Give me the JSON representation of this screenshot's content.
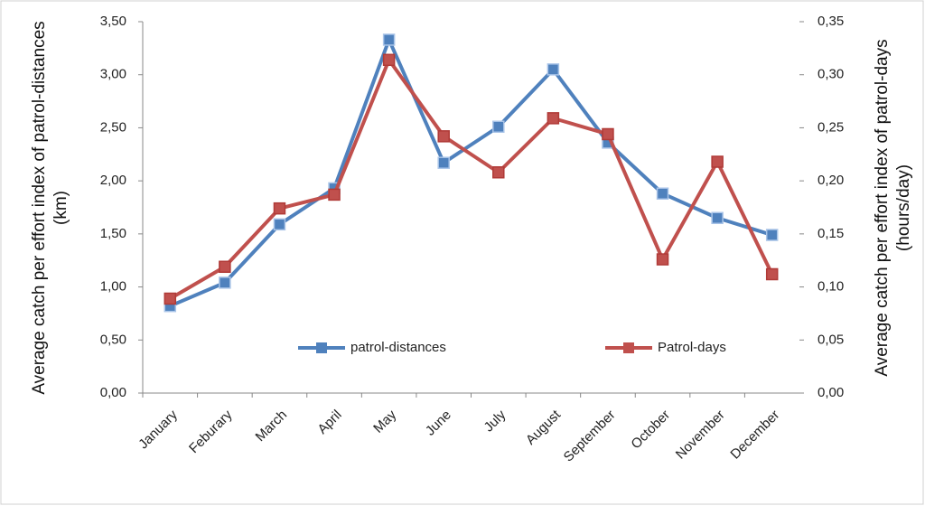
{
  "chart_data": {
    "type": "line",
    "categories": [
      "January",
      "Feburary",
      "March",
      "April",
      "May",
      "June",
      "July",
      "August",
      "September",
      "October",
      "November",
      "December"
    ],
    "series": [
      {
        "name": "patrol-distances",
        "color": "#4f81bd",
        "values": [
          0.82,
          1.04,
          1.59,
          1.93,
          3.33,
          2.17,
          2.51,
          3.05,
          2.36,
          1.88,
          1.65,
          1.49
        ]
      },
      {
        "name": "Patrol-days",
        "color": "#c0504d",
        "axis": "y2",
        "values": [
          0.089,
          0.119,
          0.174,
          0.187,
          0.314,
          0.242,
          0.208,
          0.259,
          0.244,
          0.126,
          0.218,
          0.112
        ]
      }
    ],
    "y_label": "Average catch per effort index of patrol-distances (km)",
    "y2_label": "Average catch per effort index of patrol-days (hours/day)",
    "ylim": [
      0,
      3.5
    ],
    "yticks": [
      {
        "value": 0,
        "label": "0,00"
      },
      {
        "value": 0.5,
        "label": "0,50"
      },
      {
        "value": 1,
        "label": "1,00"
      },
      {
        "value": 1.5,
        "label": "1,50"
      },
      {
        "value": 2,
        "label": "2,00"
      },
      {
        "value": 2.5,
        "label": "2,50"
      },
      {
        "value": 3,
        "label": "3,00"
      },
      {
        "value": 3.5,
        "label": "3,50"
      }
    ],
    "y2lim": [
      0,
      0.35
    ],
    "y2ticks": [
      {
        "value": 0,
        "label": "0,00"
      },
      {
        "value": 0.05,
        "label": "0,05"
      },
      {
        "value": 0.1,
        "label": "0,10"
      },
      {
        "value": 0.15,
        "label": "0,15"
      },
      {
        "value": 0.2,
        "label": "0,20"
      },
      {
        "value": 0.25,
        "label": "0,25"
      },
      {
        "value": 0.3,
        "label": "0,30"
      },
      {
        "value": 0.35,
        "label": "0,35"
      }
    ],
    "grid": false,
    "legend": "lower center"
  }
}
